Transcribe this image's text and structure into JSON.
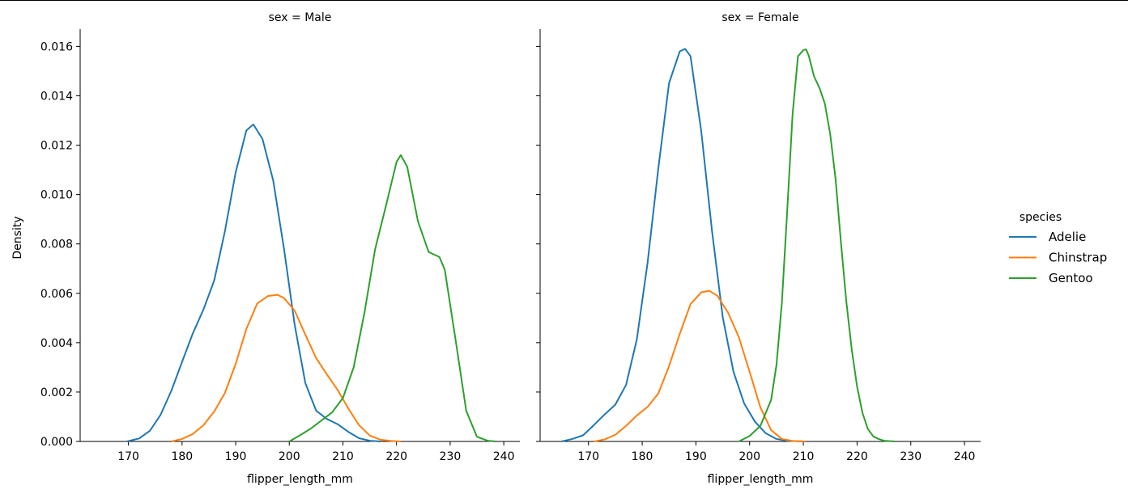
{
  "figure": {
    "y_axis_label": "Density"
  },
  "legend": {
    "title": "species",
    "entries": [
      {
        "label": "Adelie",
        "color": "#1f77b4"
      },
      {
        "label": "Chinstrap",
        "color": "#ff7f0e"
      },
      {
        "label": "Gentoo",
        "color": "#2ca02c"
      }
    ]
  },
  "chart_data": [
    {
      "type": "line",
      "title": "sex = Male",
      "xlabel": "flipper_length_mm",
      "ylabel": "Density",
      "xlim": [
        161,
        243
      ],
      "ylim": [
        0,
        0.0167
      ],
      "xticks": [
        170,
        180,
        190,
        200,
        210,
        220,
        230,
        240
      ],
      "yticks": [
        0.0,
        0.002,
        0.004,
        0.006,
        0.008,
        0.01,
        0.012,
        0.014,
        0.016
      ],
      "ytick_labels": [
        "0.000",
        "0.002",
        "0.004",
        "0.006",
        "0.008",
        "0.010",
        "0.012",
        "0.014",
        "0.016"
      ],
      "series": [
        {
          "name": "Adelie",
          "color": "#1f77b4",
          "x": [
            169.7,
            172,
            174,
            176,
            178,
            180,
            182,
            184,
            186,
            188,
            190,
            192,
            193.3,
            195,
            197,
            199,
            201,
            203,
            205,
            207,
            209,
            211,
            213,
            215,
            217
          ],
          "y": [
            0.0,
            0.00012,
            0.00043,
            0.00108,
            0.00205,
            0.00322,
            0.00437,
            0.00535,
            0.00652,
            0.00852,
            0.0109,
            0.0126,
            0.01284,
            0.01225,
            0.01057,
            0.00782,
            0.00473,
            0.00236,
            0.00125,
            0.00091,
            0.0007,
            0.00039,
            0.00013,
            3e-05,
            0.0
          ]
        },
        {
          "name": "Chinstrap",
          "color": "#ff7f0e",
          "x": [
            178,
            180,
            182,
            184,
            186,
            188,
            190,
            192,
            194,
            196,
            197.8,
            199,
            201,
            203,
            205,
            207,
            209,
            211,
            213,
            215,
            217,
            219,
            220.8
          ],
          "y": [
            0.0,
            0.0001,
            0.0003,
            0.00066,
            0.00121,
            0.00197,
            0.00314,
            0.00456,
            0.00558,
            0.00589,
            0.00594,
            0.00581,
            0.0053,
            0.00432,
            0.00338,
            0.00272,
            0.00209,
            0.00134,
            0.00066,
            0.00024,
            7e-05,
            2e-05,
            0.0
          ]
        },
        {
          "name": "Gentoo",
          "color": "#2ca02c",
          "x": [
            200,
            202,
            204,
            206,
            208,
            210,
            212,
            214,
            216,
            218,
            220,
            220.8,
            222,
            224,
            226,
            228,
            229,
            231,
            233,
            235,
            237,
            238.5
          ],
          "y": [
            0.0,
            0.00025,
            0.00052,
            0.00085,
            0.00118,
            0.00176,
            0.003,
            0.00519,
            0.00778,
            0.00952,
            0.01132,
            0.0116,
            0.01112,
            0.00891,
            0.00767,
            0.00747,
            0.00695,
            0.00413,
            0.00124,
            0.00019,
            3e-05,
            0.0
          ]
        }
      ]
    },
    {
      "type": "line",
      "title": "sex = Female",
      "xlabel": "flipper_length_mm",
      "ylabel": "",
      "xlim": [
        161,
        243
      ],
      "ylim": [
        0,
        0.0167
      ],
      "xticks": [
        170,
        180,
        190,
        200,
        210,
        220,
        230,
        240
      ],
      "yticks": [
        0.0,
        0.002,
        0.004,
        0.006,
        0.008,
        0.01,
        0.012,
        0.014,
        0.016
      ],
      "ytick_labels": [
        "",
        "",
        "",
        "",
        "",
        "",
        "",
        "",
        ""
      ],
      "series": [
        {
          "name": "Adelie",
          "color": "#1f77b4",
          "x": [
            165,
            167,
            169,
            171,
            173,
            175,
            177,
            179,
            181,
            183,
            185,
            187,
            188,
            189,
            191,
            193,
            195,
            197,
            199,
            201,
            203,
            205,
            207,
            209,
            210.4
          ],
          "y": [
            0.0,
            0.0001,
            0.00025,
            0.00066,
            0.00109,
            0.00149,
            0.00229,
            0.00413,
            0.00723,
            0.01105,
            0.01451,
            0.0158,
            0.0159,
            0.0156,
            0.01256,
            0.00852,
            0.00503,
            0.00282,
            0.00153,
            0.0008,
            0.00033,
            0.0001,
            3e-05,
            1e-05,
            0.0
          ]
        },
        {
          "name": "Chinstrap",
          "color": "#ff7f0e",
          "x": [
            171,
            173,
            175,
            177,
            179,
            181,
            183,
            185,
            187,
            189,
            191,
            192.5,
            194,
            196,
            198,
            200,
            202,
            204,
            206,
            208,
            210.4
          ],
          "y": [
            0.0,
            8e-05,
            0.00027,
            0.00063,
            0.00105,
            0.0014,
            0.00194,
            0.00305,
            0.00436,
            0.00556,
            0.00604,
            0.0061,
            0.0059,
            0.00521,
            0.00422,
            0.00282,
            0.00138,
            0.00046,
            0.0001,
            2e-05,
            0.0
          ]
        },
        {
          "name": "Gentoo",
          "color": "#2ca02c",
          "x": [
            198,
            200,
            202,
            204,
            205,
            206,
            207,
            208,
            209,
            210,
            210.5,
            211,
            212,
            213,
            214,
            215,
            216,
            217,
            218,
            219,
            220,
            221,
            222,
            223,
            224,
            225,
            227
          ],
          "y": [
            0.0,
            0.00022,
            0.00063,
            0.00168,
            0.0031,
            0.00561,
            0.00935,
            0.01326,
            0.0156,
            0.01585,
            0.01588,
            0.01563,
            0.01478,
            0.01432,
            0.01368,
            0.01245,
            0.01063,
            0.00806,
            0.00567,
            0.00374,
            0.00223,
            0.00116,
            0.00051,
            0.00021,
            0.0001,
            3e-05,
            0.0
          ]
        }
      ]
    }
  ]
}
